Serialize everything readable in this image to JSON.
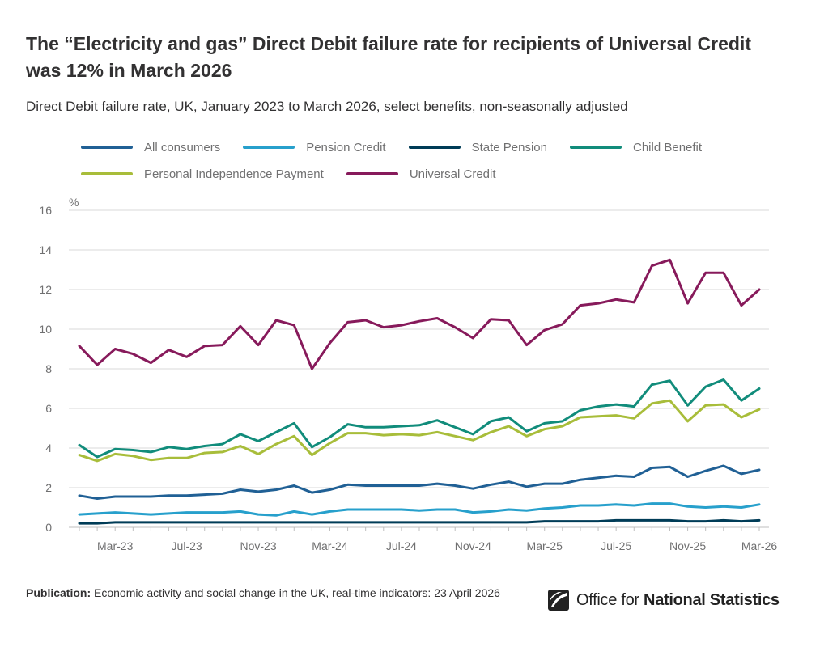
{
  "header": {
    "title": "The “Electricity and gas” Direct Debit failure rate for recipients of Universal Credit was 12% in March 2026",
    "subtitle": "Direct Debit failure rate, UK, January 2023 to March 2026, select benefits, non-seasonally adjusted"
  },
  "chart_data": {
    "type": "line",
    "title": "Direct Debit failure rate, UK, January 2023 to March 2026, select benefits, non-seasonally adjusted",
    "ylabel": "%",
    "xlabel": "",
    "ylim": [
      0,
      16
    ],
    "yticks": [
      "0",
      "2",
      "4",
      "6",
      "8",
      "10",
      "12",
      "14",
      "16"
    ],
    "x": [
      "Jan-23",
      "Feb-23",
      "Mar-23",
      "Apr-23",
      "May-23",
      "Jun-23",
      "Jul-23",
      "Aug-23",
      "Sep-23",
      "Oct-23",
      "Nov-23",
      "Dec-23",
      "Jan-24",
      "Feb-24",
      "Mar-24",
      "Apr-24",
      "May-24",
      "Jun-24",
      "Jul-24",
      "Aug-24",
      "Sep-24",
      "Oct-24",
      "Nov-24",
      "Dec-24",
      "Jan-25",
      "Feb-25",
      "Mar-25",
      "Apr-25",
      "May-25",
      "Jun-25",
      "Jul-25",
      "Aug-25",
      "Sep-25",
      "Oct-25",
      "Nov-25",
      "Dec-25",
      "Jan-26",
      "Feb-26",
      "Mar-26"
    ],
    "xtick_labels": [
      {
        "index": 2,
        "label": "Mar-23"
      },
      {
        "index": 6,
        "label": "Jul-23"
      },
      {
        "index": 10,
        "label": "Nov-23"
      },
      {
        "index": 14,
        "label": "Mar-24"
      },
      {
        "index": 18,
        "label": "Jul-24"
      },
      {
        "index": 22,
        "label": "Nov-24"
      },
      {
        "index": 26,
        "label": "Mar-25"
      },
      {
        "index": 30,
        "label": "Jul-25"
      },
      {
        "index": 34,
        "label": "Nov-25"
      },
      {
        "index": 38,
        "label": "Mar-26"
      }
    ],
    "grid": true,
    "legend_position": "top",
    "series": [
      {
        "name": "All consumers",
        "color": "#206095",
        "values": [
          1.6,
          1.45,
          1.55,
          1.55,
          1.55,
          1.6,
          1.6,
          1.65,
          1.7,
          1.9,
          1.8,
          1.9,
          2.1,
          1.75,
          1.9,
          2.15,
          2.1,
          2.1,
          2.1,
          2.1,
          2.2,
          2.1,
          1.95,
          2.15,
          2.3,
          2.05,
          2.2,
          2.2,
          2.4,
          2.5,
          2.6,
          2.55,
          3.0,
          3.05,
          2.55,
          2.85,
          3.1,
          2.7,
          2.9
        ]
      },
      {
        "name": "Pension Credit",
        "color": "#27A0CC",
        "values": [
          0.65,
          0.7,
          0.75,
          0.7,
          0.65,
          0.7,
          0.75,
          0.75,
          0.75,
          0.8,
          0.65,
          0.6,
          0.8,
          0.65,
          0.8,
          0.9,
          0.9,
          0.9,
          0.9,
          0.85,
          0.9,
          0.9,
          0.75,
          0.8,
          0.9,
          0.85,
          0.95,
          1.0,
          1.1,
          1.1,
          1.15,
          1.1,
          1.2,
          1.2,
          1.05,
          1.0,
          1.05,
          1.0,
          1.15
        ]
      },
      {
        "name": "State Pension",
        "color": "#003C57",
        "values": [
          0.2,
          0.2,
          0.25,
          0.25,
          0.25,
          0.25,
          0.25,
          0.25,
          0.25,
          0.25,
          0.25,
          0.25,
          0.25,
          0.25,
          0.25,
          0.25,
          0.25,
          0.25,
          0.25,
          0.25,
          0.25,
          0.25,
          0.25,
          0.25,
          0.25,
          0.25,
          0.3,
          0.3,
          0.3,
          0.3,
          0.35,
          0.35,
          0.35,
          0.35,
          0.3,
          0.3,
          0.35,
          0.3,
          0.35
        ]
      },
      {
        "name": "Child Benefit",
        "color": "#118C7B",
        "values": [
          4.15,
          3.55,
          3.95,
          3.9,
          3.8,
          4.05,
          3.95,
          4.1,
          4.2,
          4.7,
          4.35,
          4.8,
          5.25,
          4.05,
          4.55,
          5.2,
          5.05,
          5.05,
          5.1,
          5.15,
          5.4,
          5.05,
          4.7,
          5.35,
          5.55,
          4.85,
          5.25,
          5.35,
          5.9,
          6.1,
          6.2,
          6.1,
          7.2,
          7.4,
          6.15,
          7.1,
          7.45,
          6.4,
          7.0
        ]
      },
      {
        "name": "Personal Independence Payment",
        "color": "#A8BD3A",
        "values": [
          3.65,
          3.35,
          3.7,
          3.6,
          3.4,
          3.5,
          3.5,
          3.75,
          3.8,
          4.1,
          3.7,
          4.2,
          4.6,
          3.65,
          4.25,
          4.75,
          4.75,
          4.65,
          4.7,
          4.65,
          4.8,
          4.6,
          4.4,
          4.8,
          5.1,
          4.6,
          4.95,
          5.1,
          5.55,
          5.6,
          5.65,
          5.5,
          6.25,
          6.4,
          5.35,
          6.15,
          6.2,
          5.55,
          5.95
        ]
      },
      {
        "name": "Universal Credit",
        "color": "#871A5B",
        "values": [
          9.15,
          8.2,
          9.0,
          8.75,
          8.3,
          8.95,
          8.6,
          9.15,
          9.2,
          10.15,
          9.2,
          10.45,
          10.2,
          8.0,
          9.3,
          10.35,
          10.45,
          10.1,
          10.2,
          10.4,
          10.55,
          10.1,
          9.55,
          10.5,
          10.45,
          9.2,
          9.95,
          10.25,
          11.2,
          11.3,
          11.5,
          11.35,
          13.2,
          13.5,
          11.3,
          12.85,
          12.85,
          11.2,
          12.0
        ]
      }
    ]
  },
  "footer": {
    "publication_label": "Publication:",
    "publication_text": "Economic activity and social change in the UK, real-time indicators: 23 April 2026",
    "logo_text_plain": "Office for",
    "logo_text_bold": "National Statistics"
  }
}
